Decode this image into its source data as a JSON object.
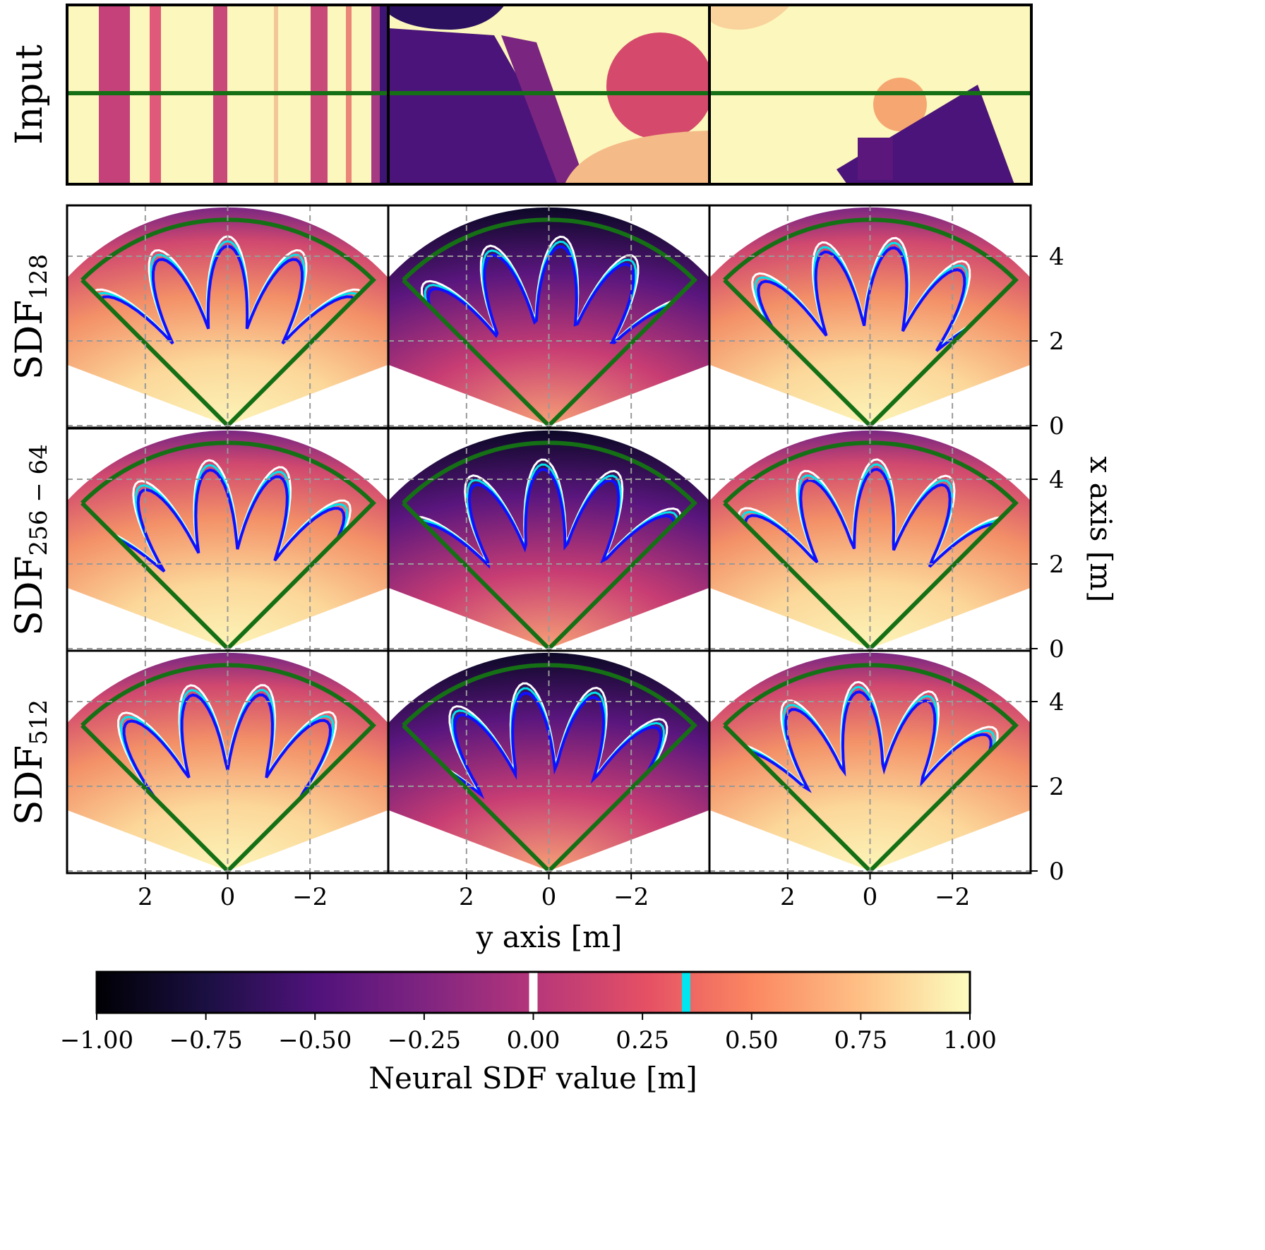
{
  "chart_data": {
    "type": "heatmap",
    "description_rows": [
      "Input",
      "SDF_128",
      "SDF_256-64",
      "SDF_512"
    ],
    "row_labels": [
      {
        "main": "Input",
        "sub": ""
      },
      {
        "main": "SDF",
        "sub": "128"
      },
      {
        "main": "SDF",
        "sub": "256 − 64"
      },
      {
        "main": "SDF",
        "sub": "512"
      }
    ],
    "columns": 3,
    "xlabel": "y axis [m]",
    "ylabel": "x axis [m]",
    "x_ticks": [
      2,
      0,
      -2
    ],
    "x_tick_labels": [
      "2",
      "0",
      "−2"
    ],
    "xlim": [
      3.9,
      -3.9
    ],
    "y_ticks": [
      0,
      2,
      4
    ],
    "y_tick_labels": [
      "0",
      "2",
      "4"
    ],
    "ylim": [
      -0.05,
      5.2
    ],
    "sensor_fov_radius": 5.0,
    "sensor_fov_half_angle_deg": 45,
    "grid": true,
    "colorbar": {
      "label": "Neural SDF value [m]",
      "colormap": "magma",
      "range": [
        -1.0,
        1.0
      ],
      "ticks": [
        -1.0,
        -0.75,
        -0.5,
        -0.25,
        0.0,
        0.25,
        0.5,
        0.75,
        1.0
      ],
      "tick_labels": [
        "−1.00",
        "−0.75",
        "−0.50",
        "−0.25",
        "0.00",
        "0.25",
        "0.50",
        "0.75",
        "1.00"
      ],
      "markers": [
        {
          "value": 0.0,
          "color": "#ffffff"
        },
        {
          "value": 0.35,
          "color": "#00e5ee"
        }
      ]
    },
    "contour_colors": {
      "zero_level": "#ffffff",
      "offset_level": "#00e5ee",
      "estimate": "#1010ff",
      "fov_boundary": "#157015",
      "scan_line": "#157015"
    }
  }
}
